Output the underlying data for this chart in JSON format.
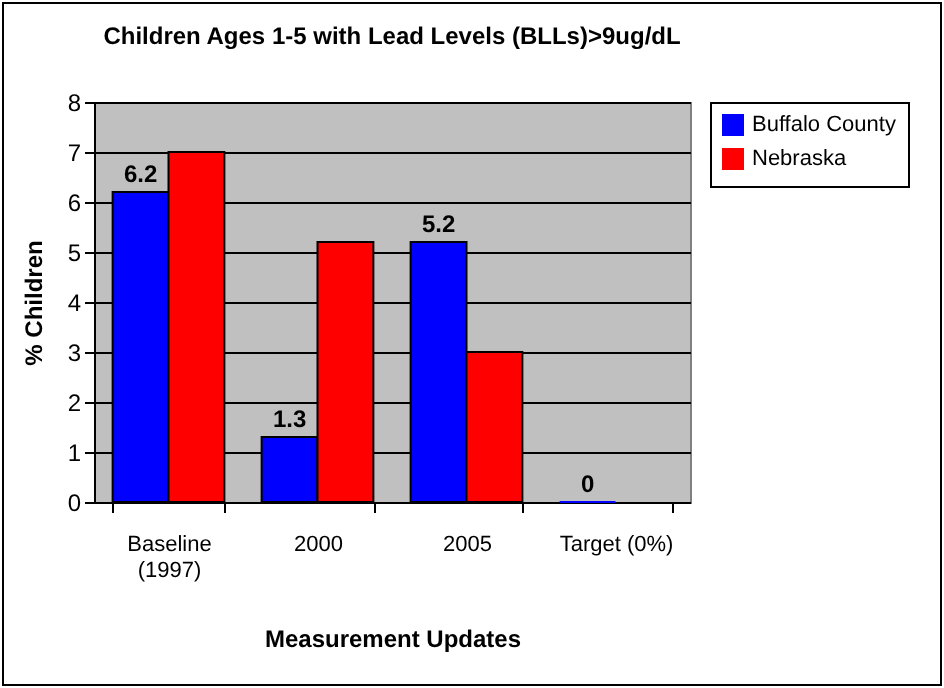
{
  "chart_data": {
    "type": "bar",
    "title": "Children Ages 1-5 with Lead Levels (BLLs)>9ug/dL",
    "categories": [
      "Baseline\n(1997)",
      "2000",
      "2005",
      "Target (0%)"
    ],
    "series": [
      {
        "name": "Buffalo County",
        "color": "#0000ff",
        "values": [
          6.2,
          1.3,
          5.2,
          0
        ],
        "value_labels": [
          "6.2",
          "1.3",
          "5.2",
          "0"
        ]
      },
      {
        "name": "Nebraska",
        "color": "#ff0000",
        "values": [
          7,
          5.2,
          3,
          null
        ]
      }
    ],
    "xlabel": "Measurement Updates",
    "ylabel": "%  Children",
    "ylim": [
      0,
      8
    ],
    "yticks": [
      0,
      1,
      2,
      3,
      4,
      5,
      6,
      7,
      8
    ],
    "grid": "y",
    "legend": "right"
  }
}
